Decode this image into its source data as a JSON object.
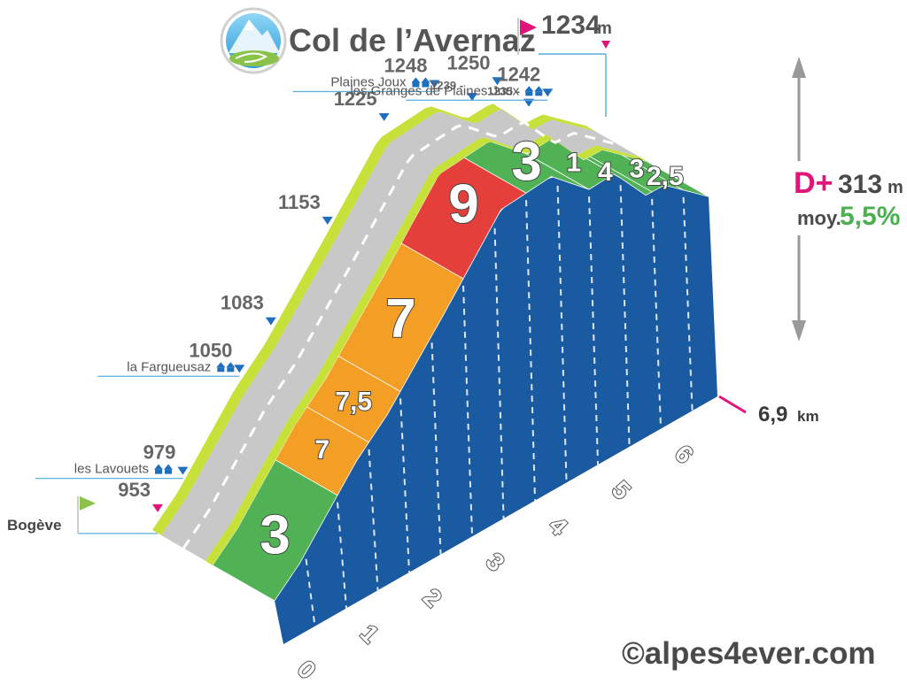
{
  "header": {
    "title": "Col de l’Avernaz",
    "summit_altitude": "1234",
    "summit_unit": "m"
  },
  "stats": {
    "elevation_gain_label": "D+",
    "elevation_gain": "313",
    "elevation_gain_unit": "m",
    "average_label": "moy.",
    "average_grade": "5,5%"
  },
  "distance": {
    "value": "6,9",
    "unit": "km"
  },
  "copyright": "©alpes4ever.com",
  "colors": {
    "km_grades": [
      "#4caf50",
      "#f39c1f",
      "#f39c1f",
      "#e53935",
      "#4caf50",
      "#4caf50",
      "#4caf50"
    ],
    "wall": "#1a5aa0",
    "road": "#c8c8c8",
    "verge": "#c7e03a",
    "start_flag": "#8bc34a",
    "summit_flag": "#e91e63",
    "arrow_blue": "#1f6fbf",
    "arrow_magenta": "#e0157a",
    "dplus": "#e0157a",
    "avg": "#4caf50"
  },
  "chart_data": {
    "type": "area",
    "title": "Col de l’Avernaz",
    "xlabel": "",
    "ylabel": "",
    "x_unit": "km",
    "x_ticks": [
      "0",
      "1",
      "2",
      "3",
      "4",
      "5",
      "6"
    ],
    "total_distance_km": 6.9,
    "km_grades": [
      {
        "km": 0,
        "label": "3",
        "grade": 3
      },
      {
        "km": 1,
        "label": "7",
        "grade": 7
      },
      {
        "km": 1.5,
        "label": "7,5",
        "grade": 7.5
      },
      {
        "km": 2,
        "label": "7",
        "grade": 7
      },
      {
        "km": 3,
        "label": "9",
        "grade": 9
      },
      {
        "km": 4,
        "label": "3",
        "grade": 3
      },
      {
        "km": 5,
        "label": "1",
        "grade": 1
      },
      {
        "km": 5.5,
        "label": "4",
        "grade": 4
      },
      {
        "km": 6,
        "label": "3",
        "grade": 3
      },
      {
        "km": 6.5,
        "label": "2,5",
        "grade": 2.5
      }
    ],
    "altitude_markers": [
      {
        "km": 0.0,
        "altitude": "953",
        "place": "Bogève",
        "marker": "start"
      },
      {
        "km": 0.4,
        "altitude": "979",
        "place": "les Lavouets",
        "marker": "down"
      },
      {
        "km": 1.3,
        "altitude": "1050",
        "place": "la Fargueusaz",
        "marker": "down"
      },
      {
        "km": 1.8,
        "altitude": "1083",
        "place": "",
        "marker": "down"
      },
      {
        "km": 2.7,
        "altitude": "1153",
        "place": "",
        "marker": "down"
      },
      {
        "km": 3.6,
        "altitude": "1225",
        "place": "",
        "marker": "down"
      },
      {
        "km": 4.4,
        "altitude": "1248",
        "place": "Plaines Joux",
        "marker": "down"
      },
      {
        "km": 5.0,
        "altitude": "1239",
        "place": "",
        "marker": "down"
      },
      {
        "km": 5.4,
        "altitude": "1250",
        "place": "",
        "marker": "down"
      },
      {
        "km": 5.9,
        "altitude": "1235",
        "place": "",
        "marker": "down"
      },
      {
        "km": 6.2,
        "altitude": "1242",
        "place": "les Granges de Plaines Joux",
        "marker": "down"
      },
      {
        "km": 6.9,
        "altitude": "1234",
        "place": "Col de l’Avernaz",
        "marker": "summit"
      }
    ],
    "total_gain_m": 313,
    "average_grade_percent": 5.5
  }
}
